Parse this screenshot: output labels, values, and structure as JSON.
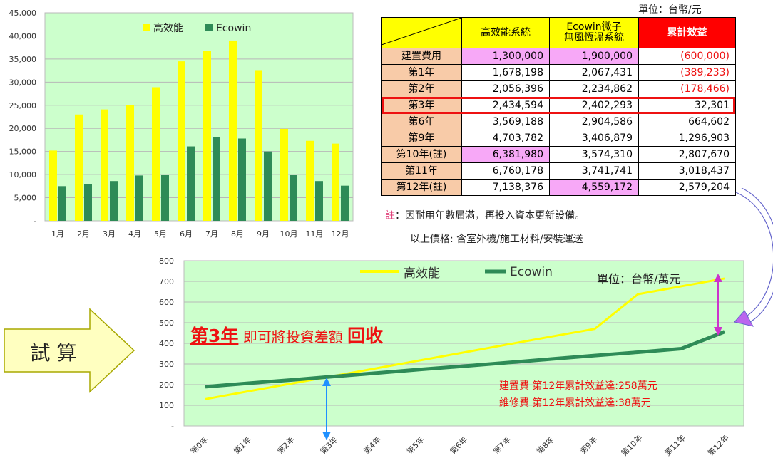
{
  "chart_data": [
    {
      "type": "bar",
      "categories": [
        "1月",
        "2月",
        "3月",
        "4月",
        "5月",
        "6月",
        "7月",
        "8月",
        "9月",
        "10月",
        "11月",
        "12月"
      ],
      "series": [
        {
          "name": "高效能",
          "color": "#ffff00",
          "values": [
            15200,
            23000,
            24100,
            25000,
            28900,
            34500,
            36700,
            39000,
            32600,
            19900,
            17300,
            16700
          ]
        },
        {
          "name": "Ecowin",
          "color": "#2e8b57",
          "values": [
            7500,
            8000,
            8600,
            9800,
            9900,
            16100,
            18100,
            17800,
            15000,
            9900,
            8600,
            7600
          ]
        }
      ],
      "ylim": [
        0,
        45000
      ],
      "yticks": [
        "-",
        "5,000",
        "10,000",
        "15,000",
        "20,000",
        "25,000",
        "30,000",
        "35,000",
        "40,000",
        "45,000"
      ],
      "grid": true,
      "legend": "top"
    },
    {
      "type": "line",
      "categories": [
        "第0年",
        "第1年",
        "第2年",
        "第3年",
        "第4年",
        "第5年",
        "第6年",
        "第7年",
        "第8年",
        "第9年",
        "第10年",
        "第11年",
        "第12年"
      ],
      "series": [
        {
          "name": "高效能",
          "color": "#ffff00",
          "values": [
            130,
            168,
            206,
            243,
            281,
            319,
            357,
            395,
            433,
            470,
            638,
            676,
            714
          ]
        },
        {
          "name": "Ecowin",
          "color": "#2e8b57",
          "values": [
            190,
            207,
            223,
            240,
            257,
            274,
            290,
            307,
            324,
            341,
            357,
            374,
            456
          ]
        }
      ],
      "ylim": [
        0,
        800
      ],
      "yticks": [
        "-",
        "100",
        "200",
        "300",
        "400",
        "500",
        "600",
        "700",
        "800"
      ],
      "grid": true,
      "legend": "top",
      "unit": "單位：台幣/萬元",
      "headline_bold": "第3年",
      "headline_mid": " 即可將投資差額 ",
      "headline_end": "回收",
      "annotation1": "建置費 第12年累計效益達:258萬元",
      "annotation2": "維修費 第12年累計效益達:38萬元"
    }
  ],
  "table": {
    "unit": "單位：台幣/元",
    "headers": [
      "高效能系統",
      "Ecowin微子",
      "無風恆溫系統",
      "累計效益"
    ],
    "rows": [
      {
        "label": "建置費用",
        "a": "1,300,000",
        "b": "1,900,000",
        "c": "(600,000)"
      },
      {
        "label": "第1年",
        "a": "1,678,198",
        "b": "2,067,431",
        "c": "(389,233)"
      },
      {
        "label": "第2年",
        "a": "2,056,396",
        "b": "2,234,862",
        "c": "(178,466)"
      },
      {
        "label": "第3年",
        "a": "2,434,594",
        "b": "2,402,293",
        "c": "32,301"
      },
      {
        "label": "第6年",
        "a": "3,569,188",
        "b": "2,904,586",
        "c": "664,602"
      },
      {
        "label": "第9年",
        "a": "4,703,782",
        "b": "3,406,879",
        "c": "1,296,903"
      },
      {
        "label": "第10年(註)",
        "a": "6,381,980",
        "b": "3,574,310",
        "c": "2,807,670"
      },
      {
        "label": "第11年",
        "a": "6,760,178",
        "b": "3,741,741",
        "c": "3,018,437"
      },
      {
        "label": "第12年(註)",
        "a": "7,138,376",
        "b": "4,559,172",
        "c": "2,579,204"
      }
    ],
    "note_mark": "註",
    "note_text": "：因耐用年數屆滿，再投入資本更新設備。",
    "note_price": "以上價格: 含室外機/施工材料/安裝運送"
  },
  "arrow_label": "試 算"
}
